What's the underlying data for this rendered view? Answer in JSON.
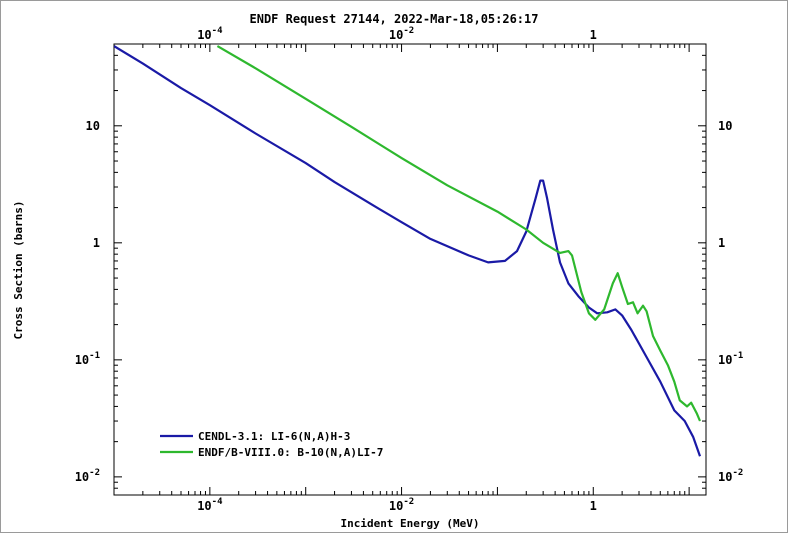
{
  "chart_data": {
    "type": "line",
    "title": "ENDF Request 27144, 2022-Mar-18,05:26:17",
    "xlabel": "Incident Energy (MeV)",
    "ylabel": "Cross Section (barns)",
    "xscale": "log",
    "yscale": "log",
    "xlim": [
      1e-05,
      15
    ],
    "ylim": [
      0.007,
      50
    ],
    "xticks": [
      {
        "value": 0.0001,
        "base": "10",
        "exp": "-4"
      },
      {
        "value": 0.01,
        "base": "10",
        "exp": "-2"
      },
      {
        "value": 1,
        "base": "1",
        "exp": ""
      }
    ],
    "yticks": [
      {
        "value": 10,
        "base": "10",
        "exp": ""
      },
      {
        "value": 1,
        "base": "1",
        "exp": ""
      },
      {
        "value": 0.1,
        "base": "10",
        "exp": "-1"
      },
      {
        "value": 0.01,
        "base": "10",
        "exp": "-2"
      }
    ],
    "grid": false,
    "legend_position": "bottom-left",
    "series": [
      {
        "name": "CENDL-3.1: LI-6(N,A)H-3",
        "color": "#1a1aa6",
        "points": [
          [
            1e-05,
            48
          ],
          [
            2e-05,
            34
          ],
          [
            5e-05,
            21
          ],
          [
            0.0001,
            15
          ],
          [
            0.0003,
            8.6
          ],
          [
            0.001,
            4.8
          ],
          [
            0.002,
            3.3
          ],
          [
            0.005,
            2.1
          ],
          [
            0.01,
            1.5
          ],
          [
            0.02,
            1.08
          ],
          [
            0.05,
            0.78
          ],
          [
            0.08,
            0.68
          ],
          [
            0.12,
            0.7
          ],
          [
            0.16,
            0.85
          ],
          [
            0.2,
            1.25
          ],
          [
            0.25,
            2.4
          ],
          [
            0.28,
            3.4
          ],
          [
            0.3,
            3.4
          ],
          [
            0.33,
            2.4
          ],
          [
            0.38,
            1.3
          ],
          [
            0.45,
            0.68
          ],
          [
            0.55,
            0.45
          ],
          [
            0.7,
            0.35
          ],
          [
            0.9,
            0.28
          ],
          [
            1.1,
            0.25
          ],
          [
            1.4,
            0.255
          ],
          [
            1.7,
            0.27
          ],
          [
            2.0,
            0.24
          ],
          [
            2.5,
            0.18
          ],
          [
            3.5,
            0.11
          ],
          [
            5,
            0.065
          ],
          [
            7,
            0.037
          ],
          [
            9,
            0.03
          ],
          [
            11,
            0.022
          ],
          [
            13,
            0.015
          ]
        ]
      },
      {
        "name": "ENDF/B-VIII.0: B-10(N,A)LI-7",
        "color": "#2eb82e",
        "points": [
          [
            0.00012,
            48
          ],
          [
            0.0003,
            31
          ],
          [
            0.001,
            17
          ],
          [
            0.003,
            9.8
          ],
          [
            0.01,
            5.3
          ],
          [
            0.03,
            3.1
          ],
          [
            0.1,
            1.85
          ],
          [
            0.2,
            1.3
          ],
          [
            0.3,
            1.0
          ],
          [
            0.45,
            0.82
          ],
          [
            0.55,
            0.85
          ],
          [
            0.6,
            0.78
          ],
          [
            0.75,
            0.38
          ],
          [
            0.9,
            0.25
          ],
          [
            1.05,
            0.22
          ],
          [
            1.3,
            0.27
          ],
          [
            1.6,
            0.45
          ],
          [
            1.8,
            0.55
          ],
          [
            2.0,
            0.42
          ],
          [
            2.3,
            0.3
          ],
          [
            2.6,
            0.31
          ],
          [
            2.9,
            0.25
          ],
          [
            3.3,
            0.29
          ],
          [
            3.6,
            0.26
          ],
          [
            4.2,
            0.16
          ],
          [
            5,
            0.12
          ],
          [
            6,
            0.09
          ],
          [
            7,
            0.065
          ],
          [
            8,
            0.045
          ],
          [
            9.5,
            0.04
          ],
          [
            10.5,
            0.043
          ],
          [
            12,
            0.035
          ],
          [
            13,
            0.03
          ]
        ]
      }
    ]
  }
}
